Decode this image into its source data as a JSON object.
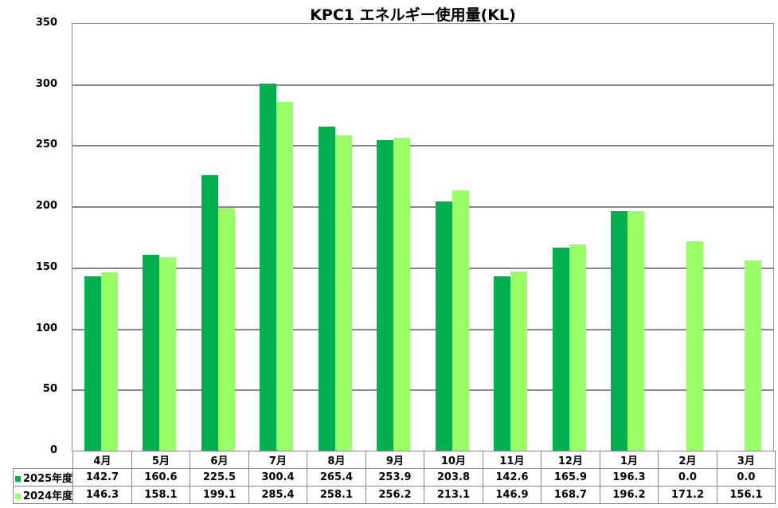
{
  "title": "KPC1 エネルギー使用量(KL)",
  "colors": {
    "series_2025": "#00B050",
    "series_2024": "#99FF66",
    "grid": "#888888"
  },
  "y_axis": {
    "ticks": [
      "350",
      "300",
      "250",
      "200",
      "150",
      "100",
      "50",
      "0"
    ]
  },
  "table": {
    "months": [
      "4月",
      "5月",
      "6月",
      "7月",
      "8月",
      "9月",
      "10月",
      "11月",
      "12月",
      "1月",
      "2月",
      "3月"
    ],
    "rows": [
      {
        "label": "2025年度",
        "values": [
          "142.7",
          "160.6",
          "225.5",
          "300.4",
          "265.4",
          "253.9",
          "203.8",
          "142.6",
          "165.9",
          "196.3",
          "0.0",
          "0.0"
        ]
      },
      {
        "label": "2024年度",
        "values": [
          "146.3",
          "158.1",
          "199.1",
          "285.4",
          "258.1",
          "256.2",
          "213.1",
          "146.9",
          "168.7",
          "196.2",
          "171.2",
          "156.1"
        ]
      }
    ]
  },
  "chart_data": {
    "type": "bar",
    "title": "KPC1 エネルギー使用量(KL)",
    "xlabel": "",
    "ylabel": "",
    "ylim": [
      0,
      350
    ],
    "yticks": [
      0,
      50,
      100,
      150,
      200,
      250,
      300,
      350
    ],
    "grid": true,
    "legend_position": "data-table",
    "categories": [
      "4月",
      "5月",
      "6月",
      "7月",
      "8月",
      "9月",
      "10月",
      "11月",
      "12月",
      "1月",
      "2月",
      "3月"
    ],
    "series": [
      {
        "name": "2025年度",
        "color": "#00B050",
        "values": [
          142.7,
          160.6,
          225.5,
          300.4,
          265.4,
          253.9,
          203.8,
          142.6,
          165.9,
          196.3,
          0.0,
          0.0
        ]
      },
      {
        "name": "2024年度",
        "color": "#99FF66",
        "values": [
          146.3,
          158.1,
          199.1,
          285.4,
          258.1,
          256.2,
          213.1,
          146.9,
          168.7,
          196.2,
          171.2,
          156.1
        ]
      }
    ]
  }
}
